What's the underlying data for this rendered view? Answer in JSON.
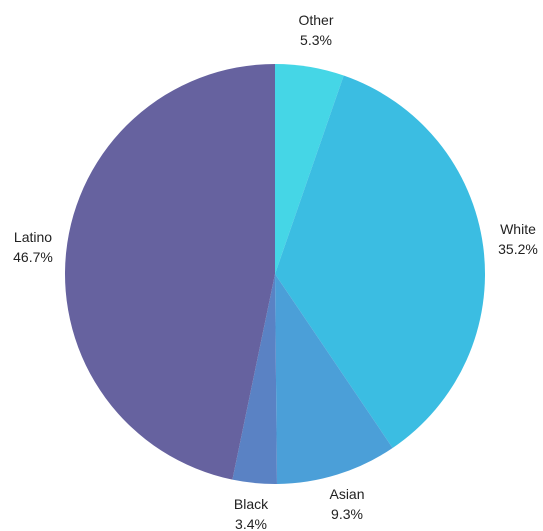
{
  "chart_data": {
    "type": "pie",
    "title": "",
    "slices": [
      {
        "label": "Other",
        "value": 5.3,
        "value_label": "5.3%",
        "color": "#45d6e6"
      },
      {
        "label": "White",
        "value": 35.2,
        "value_label": "35.2%",
        "color": "#3bbde2"
      },
      {
        "label": "Asian",
        "value": 9.3,
        "value_label": "9.3%",
        "color": "#4b9fd8"
      },
      {
        "label": "Black",
        "value": 3.4,
        "value_label": "3.4%",
        "color": "#5a82c4"
      },
      {
        "label": "Latino",
        "value": 46.7,
        "value_label": "46.7%",
        "color": "#66629f"
      }
    ],
    "start_angle": "12 o'clock",
    "direction": "clockwise",
    "legend": "none"
  }
}
